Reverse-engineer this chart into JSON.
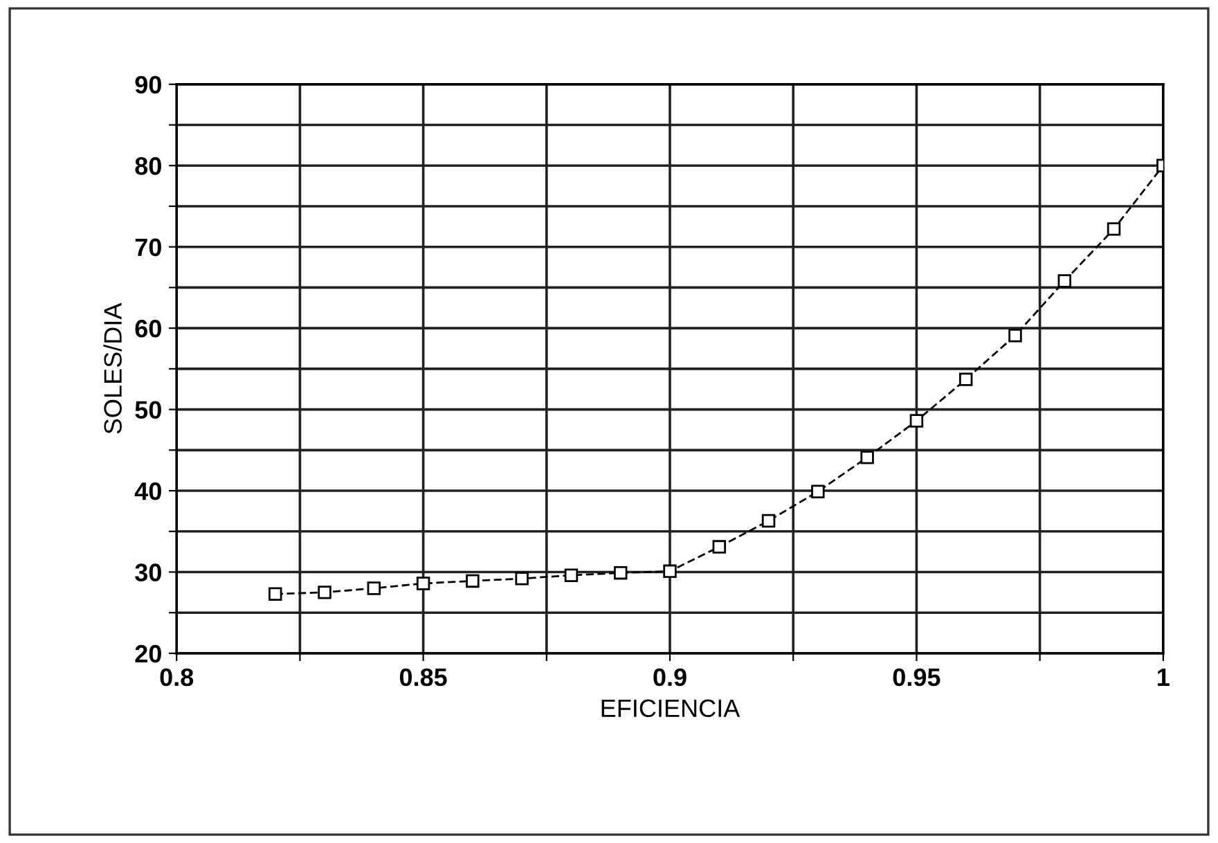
{
  "chart_data": {
    "type": "line",
    "xlabel": "EFICIENCIA",
    "ylabel": "SOLES/DIA",
    "x": [
      0.82,
      0.83,
      0.84,
      0.85,
      0.86,
      0.87,
      0.88,
      0.89,
      0.9,
      0.91,
      0.92,
      0.93,
      0.94,
      0.95,
      0.96,
      0.97,
      0.98,
      0.99,
      1.0
    ],
    "series": [
      {
        "color": "#000000",
        "values": [
          27.3,
          27.5,
          28.0,
          28.6,
          28.9,
          29.2,
          29.6,
          29.9,
          30.1,
          33.1,
          36.3,
          39.9,
          44.1,
          48.6,
          53.7,
          59.1,
          65.8,
          72.2,
          80.0
        ]
      }
    ],
    "xlim": [
      0.8,
      1.0
    ],
    "ylim": [
      20,
      90
    ],
    "xticks": [
      {
        "value": 0.8,
        "label": "0.8"
      },
      {
        "value": 0.825,
        "label": null
      },
      {
        "value": 0.85,
        "label": "0.85"
      },
      {
        "value": 0.875,
        "label": null
      },
      {
        "value": 0.9,
        "label": "0.9"
      },
      {
        "value": 0.925,
        "label": null
      },
      {
        "value": 0.95,
        "label": "0.95"
      },
      {
        "value": 0.975,
        "label": null
      },
      {
        "value": 1.0,
        "label": "1"
      }
    ],
    "yticks": [
      20,
      {
        "value": 25,
        "label": null
      },
      30,
      {
        "value": 35,
        "label": null
      },
      40,
      {
        "value": 45,
        "label": null
      },
      50,
      {
        "value": 55,
        "label": null
      },
      60,
      {
        "value": 65,
        "label": null
      },
      70,
      {
        "value": 75,
        "label": null
      },
      80,
      {
        "value": 85,
        "label": null
      },
      90
    ],
    "grid": true,
    "marker": "square",
    "line_style": "dashed"
  }
}
